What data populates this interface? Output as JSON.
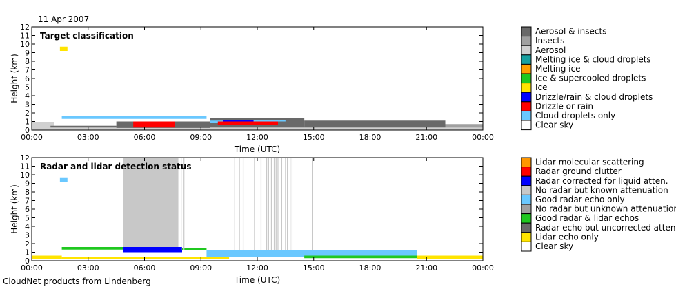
{
  "date": "11 Apr 2007",
  "footer": "CloudNet products from Lindenberg",
  "chart_data": [
    {
      "type": "heatmap",
      "title": "Target classification",
      "xlabel": "Time (UTC)",
      "ylabel": "Height (km)",
      "xlim": [
        0,
        24
      ],
      "ylim": [
        0,
        12
      ],
      "x_ticks": [
        "00:00",
        "03:00",
        "06:00",
        "09:00",
        "12:00",
        "15:00",
        "18:00",
        "21:00",
        "00:00"
      ],
      "y_ticks": [
        "0",
        "1",
        "2",
        "3",
        "4",
        "5",
        "6",
        "7",
        "8",
        "9",
        "10",
        "11",
        "12"
      ],
      "grid": false,
      "legend_position": "right",
      "legend": [
        {
          "label": "Aerosol & insects",
          "color": "#696969"
        },
        {
          "label": "Insects",
          "color": "#a0a0a0"
        },
        {
          "label": "Aerosol",
          "color": "#d0d0d0"
        },
        {
          "label": "Melting ice & cloud droplets",
          "color": "#18a0a0"
        },
        {
          "label": "Melting ice",
          "color": "#ffa000"
        },
        {
          "label": "Ice & supercooled droplets",
          "color": "#20c820"
        },
        {
          "label": "Ice",
          "color": "#ffe400"
        },
        {
          "label": "Drizzle/rain & cloud droplets",
          "color": "#0000ff"
        },
        {
          "label": "Drizzle or rain",
          "color": "#ff0000"
        },
        {
          "label": "Cloud droplets only",
          "color": "#6ac8ff"
        },
        {
          "label": "Clear sky",
          "color": "#ffffff"
        }
      ],
      "regions": [
        {
          "class": "Aerosol",
          "t0": 0,
          "t1": 24,
          "h0": 0,
          "h1": 0.5
        },
        {
          "class": "Aerosol",
          "t0": 0,
          "t1": 1.2,
          "h0": 0,
          "h1": 0.9
        },
        {
          "class": "Aerosol & insects",
          "t0": 1,
          "t1": 4.5,
          "h0": 0.3,
          "h1": 0.5
        },
        {
          "class": "Aerosol & insects",
          "t0": 4.5,
          "t1": 9.5,
          "h0": 0.25,
          "h1": 1.0
        },
        {
          "class": "Aerosol & insects",
          "t0": 9.5,
          "t1": 14.5,
          "h0": 0.3,
          "h1": 1.4
        },
        {
          "class": "Aerosol & insects",
          "t0": 14.5,
          "t1": 22,
          "h0": 0.3,
          "h1": 1.1
        },
        {
          "class": "Insects",
          "t0": 22,
          "t1": 24,
          "h0": 0.3,
          "h1": 0.7
        },
        {
          "class": "Cloud droplets only",
          "t0": 1.6,
          "t1": 9.3,
          "h0": 1.3,
          "h1": 1.6
        },
        {
          "class": "Cloud droplets only",
          "t0": 9.5,
          "t1": 10.8,
          "h0": 0.8,
          "h1": 1.1
        },
        {
          "class": "Cloud droplets only",
          "t0": 10.8,
          "t1": 13.5,
          "h0": 1.0,
          "h1": 1.2
        },
        {
          "class": "Drizzle or rain",
          "t0": 5.4,
          "t1": 7.6,
          "h0": 0.3,
          "h1": 1.0
        },
        {
          "class": "Drizzle/rain & cloud droplets",
          "t0": 10.2,
          "t1": 11.8,
          "h0": 1.0,
          "h1": 1.2
        },
        {
          "class": "Drizzle or rain",
          "t0": 9.9,
          "t1": 13.1,
          "h0": 0.6,
          "h1": 1.0
        },
        {
          "class": "Ice",
          "t0": 1.5,
          "t1": 1.9,
          "h0": 9.2,
          "h1": 9.7
        }
      ]
    },
    {
      "type": "heatmap",
      "title": "Radar and lidar detection status",
      "xlabel": "Time (UTC)",
      "ylabel": "Height (km)",
      "xlim": [
        0,
        24
      ],
      "ylim": [
        0,
        12
      ],
      "x_ticks": [
        "00:00",
        "03:00",
        "06:00",
        "09:00",
        "12:00",
        "15:00",
        "18:00",
        "21:00",
        "00:00"
      ],
      "y_ticks": [
        "0",
        "1",
        "2",
        "3",
        "4",
        "5",
        "6",
        "7",
        "8",
        "9",
        "10",
        "11",
        "12"
      ],
      "grid": false,
      "legend_position": "right",
      "legend": [
        {
          "label": "Lidar molecular scattering",
          "color": "#ff9600"
        },
        {
          "label": "Radar ground clutter",
          "color": "#ff0000"
        },
        {
          "label": "Radar corrected for liquid atten.",
          "color": "#0000ff"
        },
        {
          "label": "No radar but known attenuation",
          "color": "#c8c8c8"
        },
        {
          "label": "Good radar echo only",
          "color": "#6ac8ff"
        },
        {
          "label": "No radar but unknown attenuation",
          "color": "#a0a0a0"
        },
        {
          "label": "Good radar & lidar echos",
          "color": "#20c820"
        },
        {
          "label": "Radar echo but uncorrected atten.",
          "color": "#696969"
        },
        {
          "label": "Lidar echo only",
          "color": "#ffe400"
        },
        {
          "label": "Clear sky",
          "color": "#ffffff"
        }
      ],
      "regions": [
        {
          "class": "No radar but known attenuation",
          "t0": 4.85,
          "t1": 7.8,
          "h0": 1.6,
          "h1": 12
        },
        {
          "class": "Radar corrected for liquid atten.",
          "t0": 4.85,
          "t1": 8.0,
          "h0": 1.0,
          "h1": 1.6
        },
        {
          "class": "Good radar & lidar echos",
          "t0": 1.6,
          "t1": 4.85,
          "h0": 1.3,
          "h1": 1.6
        },
        {
          "class": "Good radar & lidar echos",
          "t0": 8.0,
          "t1": 9.3,
          "h0": 1.2,
          "h1": 1.5
        },
        {
          "class": "Lidar echo only",
          "t0": 0,
          "t1": 1.6,
          "h0": 0.2,
          "h1": 0.6
        },
        {
          "class": "Lidar echo only",
          "t0": 1.6,
          "t1": 10.5,
          "h0": 0.2,
          "h1": 0.45
        },
        {
          "class": "Lidar echo only",
          "t0": 10.2,
          "t1": 11.2,
          "h0": 0.8,
          "h1": 1.1
        },
        {
          "class": "Lidar echo only",
          "t0": 20.5,
          "t1": 24,
          "h0": 0.2,
          "h1": 0.6
        },
        {
          "class": "Good radar echo only",
          "t0": 9.3,
          "t1": 20.5,
          "h0": 0.4,
          "h1": 1.2
        },
        {
          "class": "Good radar & lidar echos",
          "t0": 14.5,
          "t1": 20.5,
          "h0": 0.3,
          "h1": 0.6
        },
        {
          "class": "Good radar echo only",
          "t0": 1.5,
          "t1": 1.9,
          "h0": 9.2,
          "h1": 9.7
        }
      ],
      "vertical_lines": {
        "class": "No radar but known attenuation",
        "h0": 1.2,
        "h1": 12,
        "times": [
          7.95,
          8.1,
          10.8,
          11.05,
          11.25,
          11.85,
          12.2,
          12.5,
          12.6,
          12.75,
          12.9,
          13.0,
          13.1,
          13.3,
          13.5,
          13.6,
          13.75,
          13.85,
          14.95
        ]
      }
    }
  ]
}
